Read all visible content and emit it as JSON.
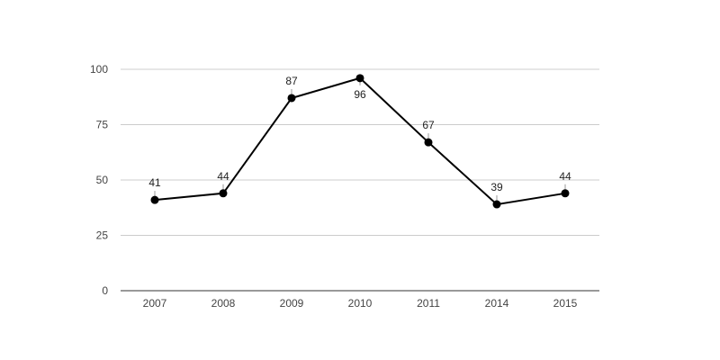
{
  "chart_data": {
    "type": "line",
    "categories": [
      "2007",
      "2008",
      "2009",
      "2010",
      "2011",
      "2014",
      "2015"
    ],
    "series": [
      {
        "values": [
          41,
          44,
          87,
          96,
          67,
          39,
          44
        ]
      }
    ],
    "data_labels": [
      "41",
      "44",
      "87",
      "96",
      "67",
      "39",
      "44"
    ],
    "ylim": [
      0,
      100
    ],
    "yticks": [
      0,
      25,
      50,
      75,
      100
    ],
    "ytick_labels": [
      "0",
      "25",
      "50",
      "75",
      "100"
    ],
    "grid": true,
    "legend": "none",
    "colors": {
      "line": "#000000",
      "grid": "#cccccc"
    }
  }
}
